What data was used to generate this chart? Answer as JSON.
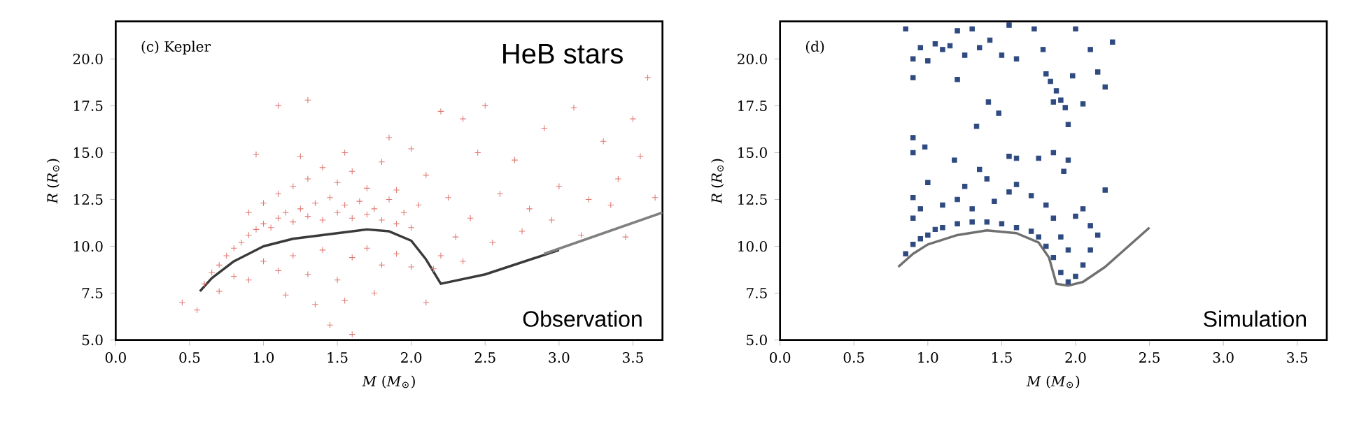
{
  "chart_data": [
    {
      "type": "scatter",
      "xlabel": "*M* (*M*$_{⊙}$)",
      "ylabel": "*R* (*R*$_{⊙}$)",
      "annotations": [
        "(c) Kepler",
        "HeB stars",
        "Observation"
      ],
      "xlim": [
        0,
        3.7
      ],
      "ylim": [
        5,
        22
      ],
      "xticks": [
        {
          "value": 0,
          "label": "0.0"
        },
        {
          "value": 0.5,
          "label": "0.5"
        },
        {
          "value": 1,
          "label": "1.0"
        },
        {
          "value": 1.5,
          "label": "1.5"
        },
        {
          "value": 2,
          "label": "2.0"
        },
        {
          "value": 2.5,
          "label": "2.5"
        },
        {
          "value": 3,
          "label": "3.0"
        },
        {
          "value": 3.5,
          "label": "3.5"
        }
      ],
      "yticks": [
        {
          "value": 5,
          "label": "5.0"
        },
        {
          "value": 7.5,
          "label": "7.5"
        },
        {
          "value": 10,
          "label": "10.0"
        },
        {
          "value": 12.5,
          "label": "12.5"
        },
        {
          "value": 15,
          "label": "15.0"
        },
        {
          "value": 17.5,
          "label": "17.5"
        },
        {
          "value": 20,
          "label": "20.0"
        }
      ],
      "series": [
        {
          "type": "scatter",
          "marker": "cross",
          "color": "#e07a72",
          "x": [
            0.6,
            0.65,
            0.7,
            0.75,
            0.8,
            0.85,
            0.9,
            0.95,
            1.0,
            1.05,
            1.1,
            1.15,
            1.2,
            1.25,
            1.3,
            1.35,
            1.4,
            1.45,
            1.5,
            1.55,
            1.6,
            1.65,
            1.7,
            1.75,
            1.8,
            1.85,
            1.9,
            1.95,
            2.0,
            2.05,
            0.9,
            1.0,
            1.1,
            1.2,
            1.3,
            1.4,
            1.5,
            1.6,
            1.7,
            1.8,
            1.9,
            1.25,
            1.55,
            1.85,
            0.95,
            1.1,
            1.3,
            2.2,
            2.35,
            2.5,
            2.45,
            2.7,
            2.9,
            3.1,
            3.3,
            3.5,
            3.6,
            3.55,
            3.4,
            3.2,
            3.0,
            2.8,
            2.6,
            2.4,
            2.3,
            2.2,
            2.15,
            2.35,
            2.55,
            2.75,
            2.95,
            3.15,
            3.35,
            3.65,
            3.45,
            2.1,
            2.25,
            2.0,
            0.45,
            0.55,
            0.7,
            0.8,
            0.9,
            1.0,
            1.1,
            1.2,
            1.3,
            1.4,
            1.5,
            1.6,
            1.7,
            1.8,
            1.9,
            2.0,
            1.35,
            1.55,
            1.6,
            1.45,
            1.75,
            1.15,
            2.1
          ],
          "values": [
            8.0,
            8.6,
            9.0,
            9.5,
            9.9,
            10.2,
            10.6,
            10.9,
            11.2,
            11.0,
            11.5,
            11.8,
            11.3,
            12.0,
            11.6,
            12.3,
            11.4,
            12.6,
            11.8,
            12.2,
            11.5,
            12.4,
            11.7,
            12.0,
            11.4,
            12.5,
            11.2,
            11.8,
            11.0,
            12.2,
            11.8,
            12.3,
            12.8,
            13.2,
            13.6,
            14.2,
            13.4,
            14.0,
            13.1,
            14.5,
            13.0,
            14.8,
            15.0,
            15.8,
            14.9,
            17.5,
            17.8,
            17.2,
            16.8,
            17.5,
            15.0,
            14.6,
            16.3,
            17.4,
            15.6,
            16.8,
            19.0,
            14.8,
            13.6,
            12.5,
            13.2,
            12.0,
            12.8,
            11.5,
            10.5,
            9.5,
            8.8,
            9.2,
            10.2,
            10.8,
            11.4,
            10.6,
            12.2,
            12.6,
            10.5,
            13.8,
            12.6,
            15.2,
            7.0,
            6.6,
            7.6,
            8.4,
            8.2,
            9.2,
            8.7,
            9.5,
            8.5,
            9.8,
            8.2,
            9.4,
            9.9,
            9.0,
            9.6,
            8.9,
            6.9,
            7.1,
            5.3,
            5.8,
            7.5,
            7.4,
            7.0
          ]
        },
        {
          "type": "line",
          "color": "#3a3a3a",
          "x": [
            0.57,
            0.65,
            0.8,
            1.0,
            1.2,
            1.5,
            1.7,
            1.85,
            2.0,
            2.1,
            2.2,
            2.5,
            3.0
          ],
          "values": [
            7.6,
            8.3,
            9.2,
            10.0,
            10.4,
            10.7,
            10.9,
            10.8,
            10.3,
            9.3,
            8.0,
            8.5,
            9.8
          ]
        },
        {
          "type": "line",
          "color": "#808080",
          "x": [
            2.9,
            3.3,
            3.7
          ],
          "values": [
            9.6,
            10.7,
            11.8
          ]
        }
      ]
    },
    {
      "type": "scatter",
      "xlabel": "*M* (*M*$_{⊙}$)",
      "ylabel": "*R* (*R*$_{⊙}$)",
      "annotations": [
        "(d)",
        "Simulation"
      ],
      "xlim": [
        0,
        3.7
      ],
      "ylim": [
        5,
        22
      ],
      "xticks": [
        {
          "value": 0,
          "label": "0.0"
        },
        {
          "value": 0.5,
          "label": "0.5"
        },
        {
          "value": 1,
          "label": "1.0"
        },
        {
          "value": 1.5,
          "label": "1.5"
        },
        {
          "value": 2,
          "label": "2.0"
        },
        {
          "value": 2.5,
          "label": "2.5"
        },
        {
          "value": 3,
          "label": "3.0"
        },
        {
          "value": 3.5,
          "label": "3.5"
        }
      ],
      "yticks": [
        {
          "value": 5,
          "label": "5.0"
        },
        {
          "value": 7.5,
          "label": "7.5"
        },
        {
          "value": 10,
          "label": "10.0"
        },
        {
          "value": 12.5,
          "label": "12.5"
        },
        {
          "value": 15,
          "label": "15.0"
        },
        {
          "value": 17.5,
          "label": "17.5"
        },
        {
          "value": 20,
          "label": "20.0"
        }
      ],
      "series": [
        {
          "type": "line",
          "color": "#707070",
          "x": [
            0.8,
            0.9,
            1.0,
            1.2,
            1.4,
            1.6,
            1.75,
            1.82,
            1.87,
            1.95,
            2.05,
            2.2,
            2.5
          ],
          "values": [
            8.9,
            9.6,
            10.1,
            10.6,
            10.85,
            10.7,
            10.2,
            9.4,
            8.0,
            7.9,
            8.1,
            8.9,
            11.0
          ]
        },
        {
          "type": "scatter",
          "marker": "square",
          "color": "#2e4a80",
          "x": [
            0.85,
            0.9,
            0.95,
            1.0,
            1.05,
            1.1,
            1.2,
            1.3,
            1.4,
            1.5,
            1.6,
            1.7,
            1.75,
            1.8,
            1.85,
            1.9,
            1.95,
            2.0,
            2.05,
            2.1,
            2.15,
            2.1,
            1.95,
            1.9,
            0.9,
            0.9,
            0.95,
            1.0,
            1.1,
            1.2,
            1.25,
            1.3,
            1.35,
            1.4,
            1.45,
            1.55,
            1.6,
            1.7,
            1.8,
            1.85,
            2.0,
            2.05,
            2.2,
            0.9,
            0.9,
            0.98,
            1.18,
            1.33,
            1.55,
            1.6,
            1.75,
            1.85,
            1.92,
            1.95,
            1.48,
            1.41,
            0.85,
            0.9,
            0.9,
            0.95,
            1.0,
            1.05,
            1.1,
            1.15,
            1.2,
            1.25,
            1.3,
            1.35,
            1.42,
            1.5,
            1.55,
            1.6,
            1.72,
            1.78,
            1.8,
            1.83,
            1.87,
            1.9,
            1.93,
            1.85,
            1.95,
            1.98,
            2.05,
            2.1,
            2.15,
            2.2,
            2.25,
            2.0,
            1.2
          ],
          "values": [
            9.6,
            10.1,
            10.4,
            10.6,
            10.9,
            11.0,
            11.2,
            11.3,
            11.3,
            11.2,
            11.0,
            10.8,
            10.5,
            10.0,
            9.4,
            8.6,
            8.1,
            8.4,
            9.0,
            9.8,
            10.6,
            11.1,
            9.8,
            10.5,
            11.5,
            12.6,
            12.0,
            13.4,
            12.2,
            12.5,
            13.2,
            12.0,
            14.1,
            13.6,
            12.4,
            12.9,
            13.3,
            12.7,
            12.2,
            11.5,
            11.6,
            12.0,
            13.0,
            15.8,
            15.0,
            15.3,
            14.6,
            16.4,
            14.8,
            14.7,
            14.7,
            15.0,
            14.0,
            14.6,
            17.1,
            17.7,
            21.6,
            20.0,
            19.0,
            20.6,
            19.9,
            20.8,
            20.5,
            20.7,
            21.5,
            20.2,
            21.6,
            20.6,
            21.0,
            20.2,
            21.8,
            20.0,
            21.6,
            20.5,
            19.2,
            18.8,
            18.3,
            17.8,
            17.4,
            17.7,
            16.5,
            19.1,
            17.6,
            20.5,
            19.3,
            18.5,
            20.9,
            21.6,
            18.9
          ]
        }
      ]
    }
  ]
}
